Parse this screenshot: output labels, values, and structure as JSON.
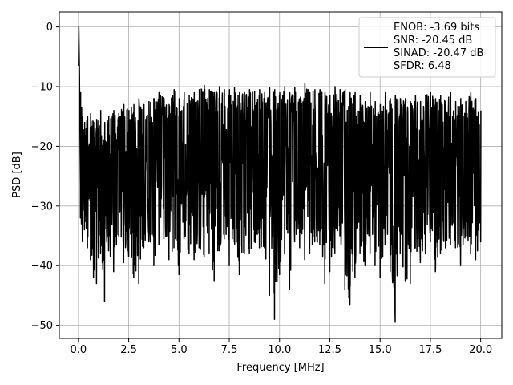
{
  "chart_data": {
    "type": "line",
    "xlabel": "Frequency [MHz]",
    "ylabel": "PSD [dB]",
    "xlim": [
      -0.95,
      21.05
    ],
    "ylim": [
      -52.2,
      2.5
    ],
    "x_ticks": [
      0.0,
      2.5,
      5.0,
      7.5,
      10.0,
      12.5,
      15.0,
      17.5,
      20.0
    ],
    "x_tick_labels": [
      "0.0",
      "2.5",
      "5.0",
      "7.5",
      "10.0",
      "12.5",
      "15.0",
      "17.5",
      "20.0"
    ],
    "y_ticks": [
      0,
      -10,
      -20,
      -30,
      -40,
      -50
    ],
    "y_tick_labels": [
      "0",
      "−10",
      "−20",
      "−30",
      "−40",
      "−50"
    ],
    "grid": true,
    "legend_position": "top-right",
    "legend": [
      "ENOB: -3.69 bits",
      "SNR: -20.45 dB",
      "SINAD: -20.47 dB",
      "SFDR: 6.48"
    ],
    "series_color": "#000000",
    "series": [
      {
        "x": [
          0.0,
          0.02,
          0.05,
          0.1,
          0.15,
          0.2,
          0.3,
          0.45,
          0.6,
          0.75,
          0.9,
          1.1,
          1.3,
          1.5,
          1.75,
          2.0,
          2.25,
          2.5,
          2.75,
          3.0,
          3.25,
          3.5,
          3.75,
          4.0,
          4.25,
          4.5,
          4.75,
          5.0,
          5.25,
          5.5,
          5.75,
          6.0,
          6.25,
          6.5,
          6.75,
          7.0,
          7.25,
          7.5,
          7.75,
          8.0,
          8.25,
          8.5,
          8.75,
          9.0,
          9.25,
          9.5,
          9.75,
          10.0,
          10.25,
          10.5,
          10.75,
          11.0,
          11.25,
          11.5,
          11.75,
          12.0,
          12.25,
          12.5,
          12.75,
          13.0,
          13.25,
          13.5,
          13.75,
          14.0,
          14.25,
          14.5,
          14.75,
          15.0,
          15.25,
          15.5,
          15.75,
          16.0,
          16.25,
          16.5,
          16.75,
          17.0,
          17.25,
          17.5,
          17.75,
          18.0,
          18.25,
          18.5,
          18.75,
          19.0,
          19.25,
          19.5,
          19.75,
          20.0
        ],
        "ymax": [
          -6.5,
          0.0,
          -7.0,
          -11.0,
          -13.5,
          -15.0,
          -16.0,
          -15.0,
          -14.5,
          -16.0,
          -15.5,
          -14.0,
          -16.0,
          -15.0,
          -14.0,
          -14.5,
          -13.0,
          -14.0,
          -13.0,
          -12.0,
          -13.0,
          -12.5,
          -12.0,
          -11.0,
          -12.0,
          -13.0,
          -10.5,
          -12.0,
          -11.0,
          -11.5,
          -11.0,
          -10.5,
          -9.8,
          -10.5,
          -11.0,
          -10.0,
          -10.5,
          -10.5,
          -10.2,
          -11.0,
          -11.0,
          -10.5,
          -10.8,
          -10.5,
          -11.0,
          -10.2,
          -10.5,
          -11.0,
          -10.0,
          -11.0,
          -10.2,
          -12.0,
          -9.5,
          -11.0,
          -10.5,
          -10.5,
          -11.0,
          -11.5,
          -10.0,
          -10.5,
          -10.5,
          -11.0,
          -11.0,
          -11.5,
          -12.5,
          -11.0,
          -12.5,
          -13.0,
          -11.0,
          -12.0,
          -11.5,
          -12.0,
          -12.0,
          -12.5,
          -11.5,
          -12.5,
          -11.5,
          -11.0,
          -12.0,
          -11.5,
          -12.5,
          -11.0,
          -12.5,
          -12.0,
          -12.5,
          -11.0,
          -12.0,
          -14.0
        ],
        "ymin": [
          -6.5,
          0.0,
          -33.0,
          -32.0,
          -33.0,
          -36.0,
          -34.0,
          -37.0,
          -39.0,
          -42.0,
          -43.0,
          -38.0,
          -46.0,
          -37.5,
          -41.0,
          -35.0,
          -39.5,
          -38.5,
          -42.0,
          -43.0,
          -37.0,
          -36.0,
          -40.0,
          -36.5,
          -35.5,
          -39.0,
          -37.0,
          -41.5,
          -35.5,
          -38.0,
          -39.0,
          -37.0,
          -38.5,
          -38.0,
          -42.5,
          -37.5,
          -35.5,
          -40.0,
          -36.0,
          -41.5,
          -38.0,
          -38.0,
          -36.0,
          -37.0,
          -37.0,
          -45.0,
          -49.0,
          -41.5,
          -38.0,
          -44.0,
          -36.0,
          -37.0,
          -39.0,
          -38.0,
          -36.0,
          -36.5,
          -43.0,
          -41.0,
          -38.0,
          -35.0,
          -44.0,
          -46.5,
          -42.0,
          -38.0,
          -40.0,
          -38.0,
          -40.0,
          -42.0,
          -36.5,
          -41.0,
          -49.5,
          -38.0,
          -42.5,
          -43.0,
          -37.0,
          -39.5,
          -38.0,
          -36.0,
          -41.0,
          -38.0,
          -37.0,
          -36.5,
          -37.0,
          -40.0,
          -35.0,
          -38.0,
          -39.0,
          -36.0
        ]
      }
    ]
  }
}
